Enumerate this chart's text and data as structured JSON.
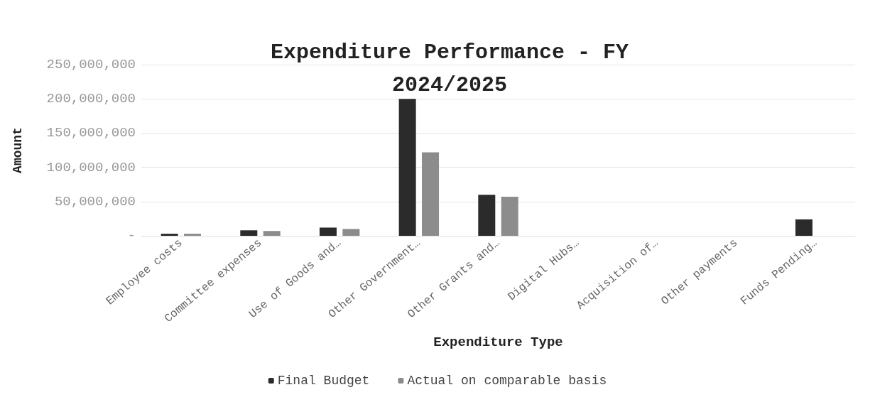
{
  "chart_data": {
    "type": "bar",
    "title": "Expenditure Performance - FY\n2024/2025",
    "xlabel": "Expenditure Type",
    "ylabel": "Amount",
    "categories": [
      "Employee costs",
      "Committee expenses",
      "Use of Goods and…",
      "Other Government…",
      "Other Grants and…",
      "Digital Hubs…",
      "Acquisition of…",
      "Other payments",
      "Funds Pending…"
    ],
    "series": [
      {
        "name": "Final Budget",
        "color": "#2b2b2b",
        "values": [
          3000000,
          8000000,
          12000000,
          200000000,
          60000000,
          0,
          0,
          0,
          24000000
        ]
      },
      {
        "name": "Actual on comparable basis",
        "color": "#8c8c8c",
        "values": [
          3000000,
          7000000,
          10000000,
          122000000,
          57000000,
          0,
          0,
          0,
          null
        ]
      }
    ],
    "ylim": [
      0,
      250000000
    ],
    "yticks": [
      {
        "value": 0,
        "label": "-"
      },
      {
        "value": 50000000,
        "label": "50,000,000"
      },
      {
        "value": 100000000,
        "label": "100,000,000"
      },
      {
        "value": 150000000,
        "label": "150,000,000"
      },
      {
        "value": 200000000,
        "label": "200,000,000"
      },
      {
        "value": 250000000,
        "label": "250,000,000"
      }
    ],
    "grid": "y",
    "legend": "bottom"
  }
}
